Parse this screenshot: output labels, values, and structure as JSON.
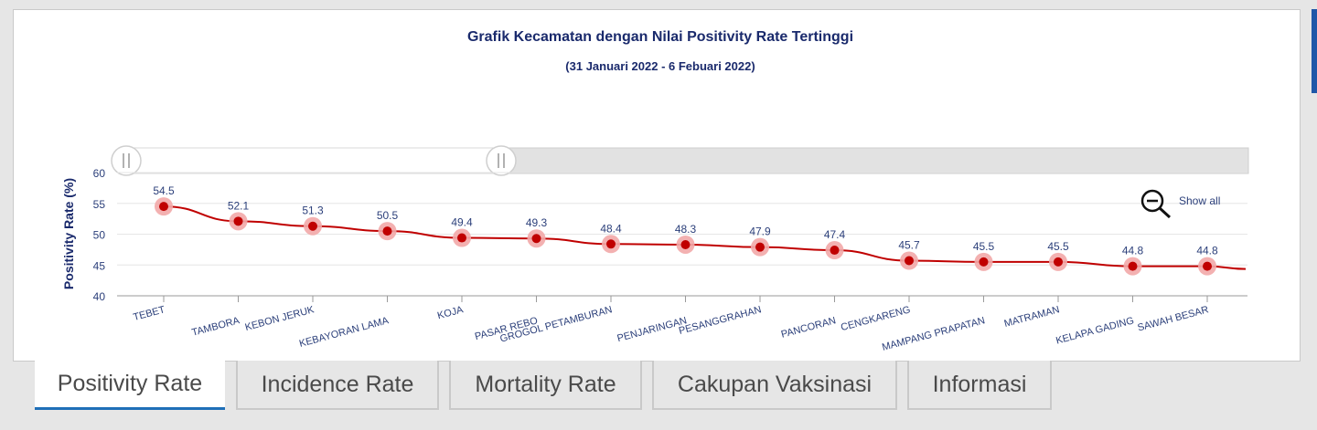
{
  "chart_data": {
    "type": "line",
    "title": "Grafik Kecamatan dengan Nilai Positivity Rate Tertinggi",
    "subtitle": "(31 Januari 2022 - 6 Febuari 2022)",
    "ylabel": "Positivity Rate (%)",
    "ylim": [
      40,
      60
    ],
    "yticks": [
      40,
      45,
      50,
      55,
      60
    ],
    "categories": [
      "TEBET",
      "TAMBORA",
      "KEBON JERUK",
      "KEBAYORAN LAMA",
      "KOJA",
      "PASAR REBO",
      "GROGOL PETAMBURAN",
      "PENJARINGAN",
      "PESANGGRAHAN",
      "PANCORAN",
      "CENGKARENG",
      "MAMPANG PRAPATAN",
      "MATRAMAN",
      "KELAPA GADING",
      "SAWAH BESAR"
    ],
    "values": [
      54.5,
      52.1,
      51.3,
      50.5,
      49.4,
      49.3,
      48.4,
      48.3,
      47.9,
      47.4,
      45.7,
      45.5,
      45.5,
      44.8,
      44.8
    ],
    "grid": true,
    "line_color": "#c00000",
    "marker_halo_color": "#f2a9a9"
  },
  "zoom": {
    "label": "Show all",
    "icon": "zoom-out-icon"
  },
  "tabs": [
    {
      "label": "Positivity Rate",
      "active": true
    },
    {
      "label": "Incidence Rate",
      "active": false
    },
    {
      "label": "Mortality Rate",
      "active": false
    },
    {
      "label": "Cakupan Vaksinasi",
      "active": false
    },
    {
      "label": "Informasi",
      "active": false
    }
  ],
  "colors": {
    "title": "#1a2a6c",
    "axis_text": "#2b3f7a",
    "accent": "#1f6fb8"
  }
}
